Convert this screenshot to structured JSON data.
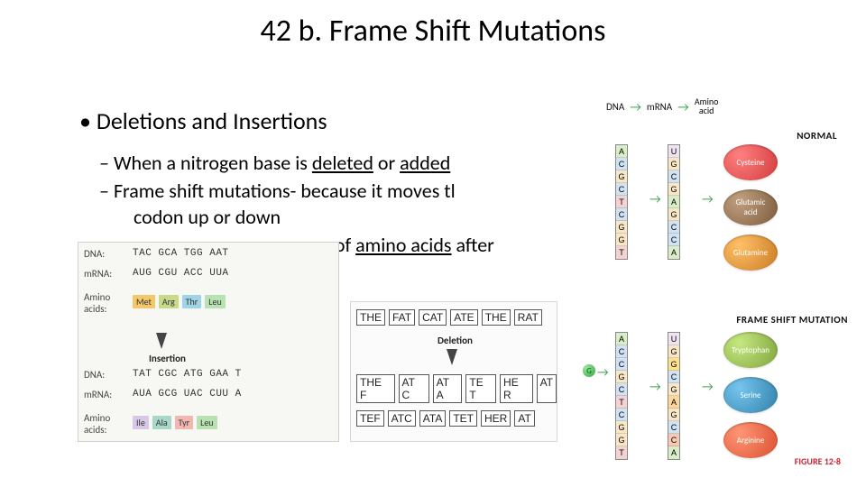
{
  "title": "42 b. Frame Shift Mutations",
  "bullets": {
    "main": "Deletions and Insertions",
    "sub1_prefix": "When a nitrogen base is ",
    "sub1_u1": "deleted",
    "sub1_mid": " or ",
    "sub1_u2": "added",
    "sub2": "Frame shift mutations- because it moves tl",
    "sub3": "codon up or down",
    "sub4_mid": "quence of ",
    "sub4_u": "amino acids",
    "sub4_end": " after"
  },
  "fig_left": {
    "labels": {
      "dna": "DNA:",
      "mrna": "mRNA:",
      "aa": "Amino\nacids:",
      "insertion": "Insertion"
    },
    "dna1": "TAC GCA TGG AAT",
    "mrna1": "AUG CGU ACC UUA",
    "aa1": [
      {
        "name": "Met",
        "bg": "#f4c76a"
      },
      {
        "name": "Arg",
        "bg": "#c9d98a"
      },
      {
        "name": "Thr",
        "bg": "#9fd3e6"
      },
      {
        "name": "Leu",
        "bg": "#b8e2b1"
      }
    ],
    "dna2": "TAT CGC ATG GAA T",
    "mrna2": "AUA GCG UAC CUU A",
    "aa2": [
      {
        "name": "Ile",
        "bg": "#d9c7e8"
      },
      {
        "name": "Ala",
        "bg": "#a8d8c9"
      },
      {
        "name": "Tyr",
        "bg": "#f2b7b0"
      },
      {
        "name": "Leu",
        "bg": "#b8e2b1"
      }
    ]
  },
  "fig_center": {
    "row1": [
      "THE",
      "FAT",
      "CAT",
      "ATE",
      "THE",
      "RAT"
    ],
    "label": "Deletion",
    "row2_raw": "THE F AT C  AT A  TE T  HE R  AT",
    "row2_boxes": [
      "THE F",
      "AT C",
      "AT A",
      "TE T",
      "HE R",
      "AT"
    ],
    "row3": [
      "TEF",
      "ATC",
      "ATA",
      "TET",
      "HER",
      "AT"
    ]
  },
  "fig_right": {
    "header": {
      "dna": "DNA",
      "mrna": "mRNA",
      "aa": "Amino\nacid"
    },
    "normal_label": "NORMAL",
    "mutation_label": "FRAME SHIFT MUTATION",
    "caption": "FIGURE 12-8",
    "dna_col": [
      "A",
      "C",
      "G",
      "C",
      "T",
      "C",
      "G",
      "G",
      "T"
    ],
    "mrna_col": [
      "U",
      "G",
      "C",
      "G",
      "A",
      "G",
      "C",
      "C",
      "A"
    ],
    "aa_normal": [
      {
        "name": "Cysteine",
        "bg": "#d23a3a"
      },
      {
        "name": "Glutamic\nacid",
        "bg": "#7a5a3a"
      },
      {
        "name": "Glutamine",
        "bg": "#c97a22"
      }
    ],
    "inserted_base": "G",
    "dna_mut": [
      "A",
      "C",
      "C",
      "G",
      "C",
      "T",
      "C",
      "G",
      "G",
      "T"
    ],
    "mrna_mut": [
      "U",
      "G",
      "G",
      "C",
      "G",
      "A",
      "G",
      "C",
      "C",
      "A"
    ],
    "mrna_mut_colors": [
      "#fff",
      "#fff",
      "#ffe08a",
      "#fff",
      "#fff",
      "#ffd59a",
      "#fff",
      "#fff",
      "#f8c8b0",
      "#fff"
    ],
    "aa_mut": [
      {
        "name": "Tryptophan",
        "bg": "#7fa23a"
      },
      {
        "name": "Serine",
        "bg": "#2f7fa8"
      },
      {
        "name": "Arginine",
        "bg": "#d94f2f"
      }
    ],
    "base_colors": {
      "A": "#d8edc8",
      "C": "#cfe3f4",
      "G": "#f8e6c4",
      "T": "#f4d2d2",
      "U": "#f0e4f4"
    }
  }
}
